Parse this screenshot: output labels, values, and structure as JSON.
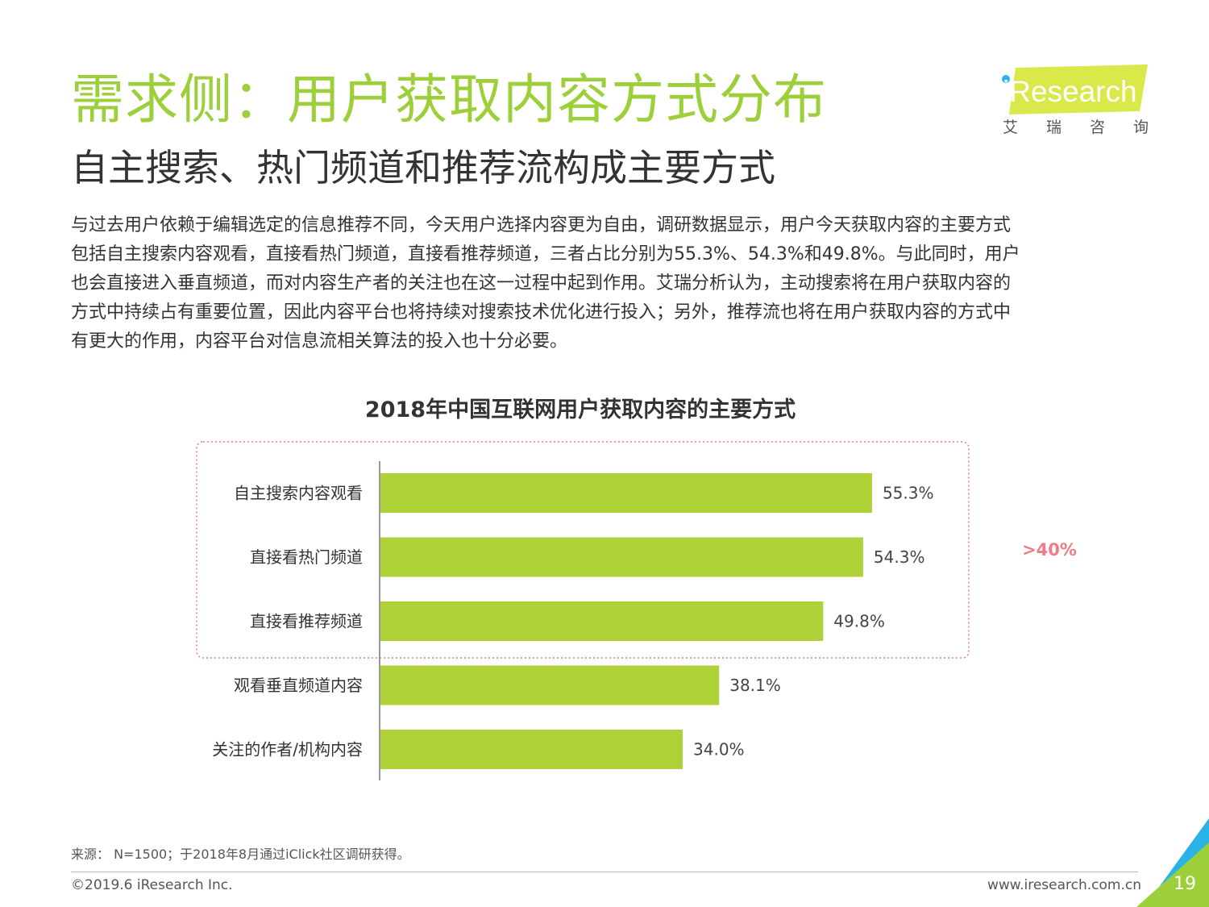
{
  "header": {
    "title": "需求侧：用户获取内容方式分布",
    "subtitle": "自主搜索、热门频道和推荐流构成主要方式"
  },
  "logo": {
    "brand": "iResearch",
    "chars": [
      "艾",
      "瑞",
      "咨",
      "询"
    ]
  },
  "body_lines": [
    "与过去用户依赖于编辑选定的信息推荐不同，今天用户选择内容更为自由，调研数据显示，用户今天获取内容的主要方式",
    "包括自主搜索内容观看，直接看热门频道，直接看推荐频道，三者占比分别为55.3%、54.3%和49.8%。与此同时，用户",
    "也会直接进入垂直频道，而对内容生产者的关注也在这一过程中起到作用。艾瑞分析认为，主动搜索将在用户获取内容的",
    "方式中持续占有重要位置，因此内容平台也将持续对搜索技术优化进行投入；另外，推荐流也将在用户获取内容的方式中",
    "有更大的作用，内容平台对信息流相关算法的投入也十分必要。"
  ],
  "chart_data": {
    "type": "bar",
    "orientation": "horizontal",
    "title": "2018年中国互联网用户获取内容的主要方式",
    "categories": [
      "自主搜索内容观看",
      "直接看热门频道",
      "直接看推荐频道",
      "观看垂直频道内容",
      "关注的作者/机构内容"
    ],
    "values": [
      55.3,
      54.3,
      49.8,
      38.1,
      34.0
    ],
    "value_labels": [
      "55.3%",
      "54.3%",
      "49.8%",
      "38.1%",
      "34.0%"
    ],
    "xlim": [
      0,
      60
    ],
    "grid": false,
    "bar_color": "#add136",
    "annotation": {
      "text": ">40%",
      "color": "#f07a86",
      "highlighted_categories": [
        "自主搜索内容观看",
        "直接看热门频道",
        "直接看推荐频道"
      ]
    }
  },
  "footer": {
    "note": "来源： N=1500；于2018年8月通过iClick社区调研获得。",
    "copyright": "©2019.6 iResearch Inc.",
    "website": "www.iresearch.com.cn",
    "page_number": "19"
  },
  "colors": {
    "title": "#9ccf3a",
    "accent_blue": "#2bb3e8",
    "accent_yellow": "#e5ec3a"
  }
}
